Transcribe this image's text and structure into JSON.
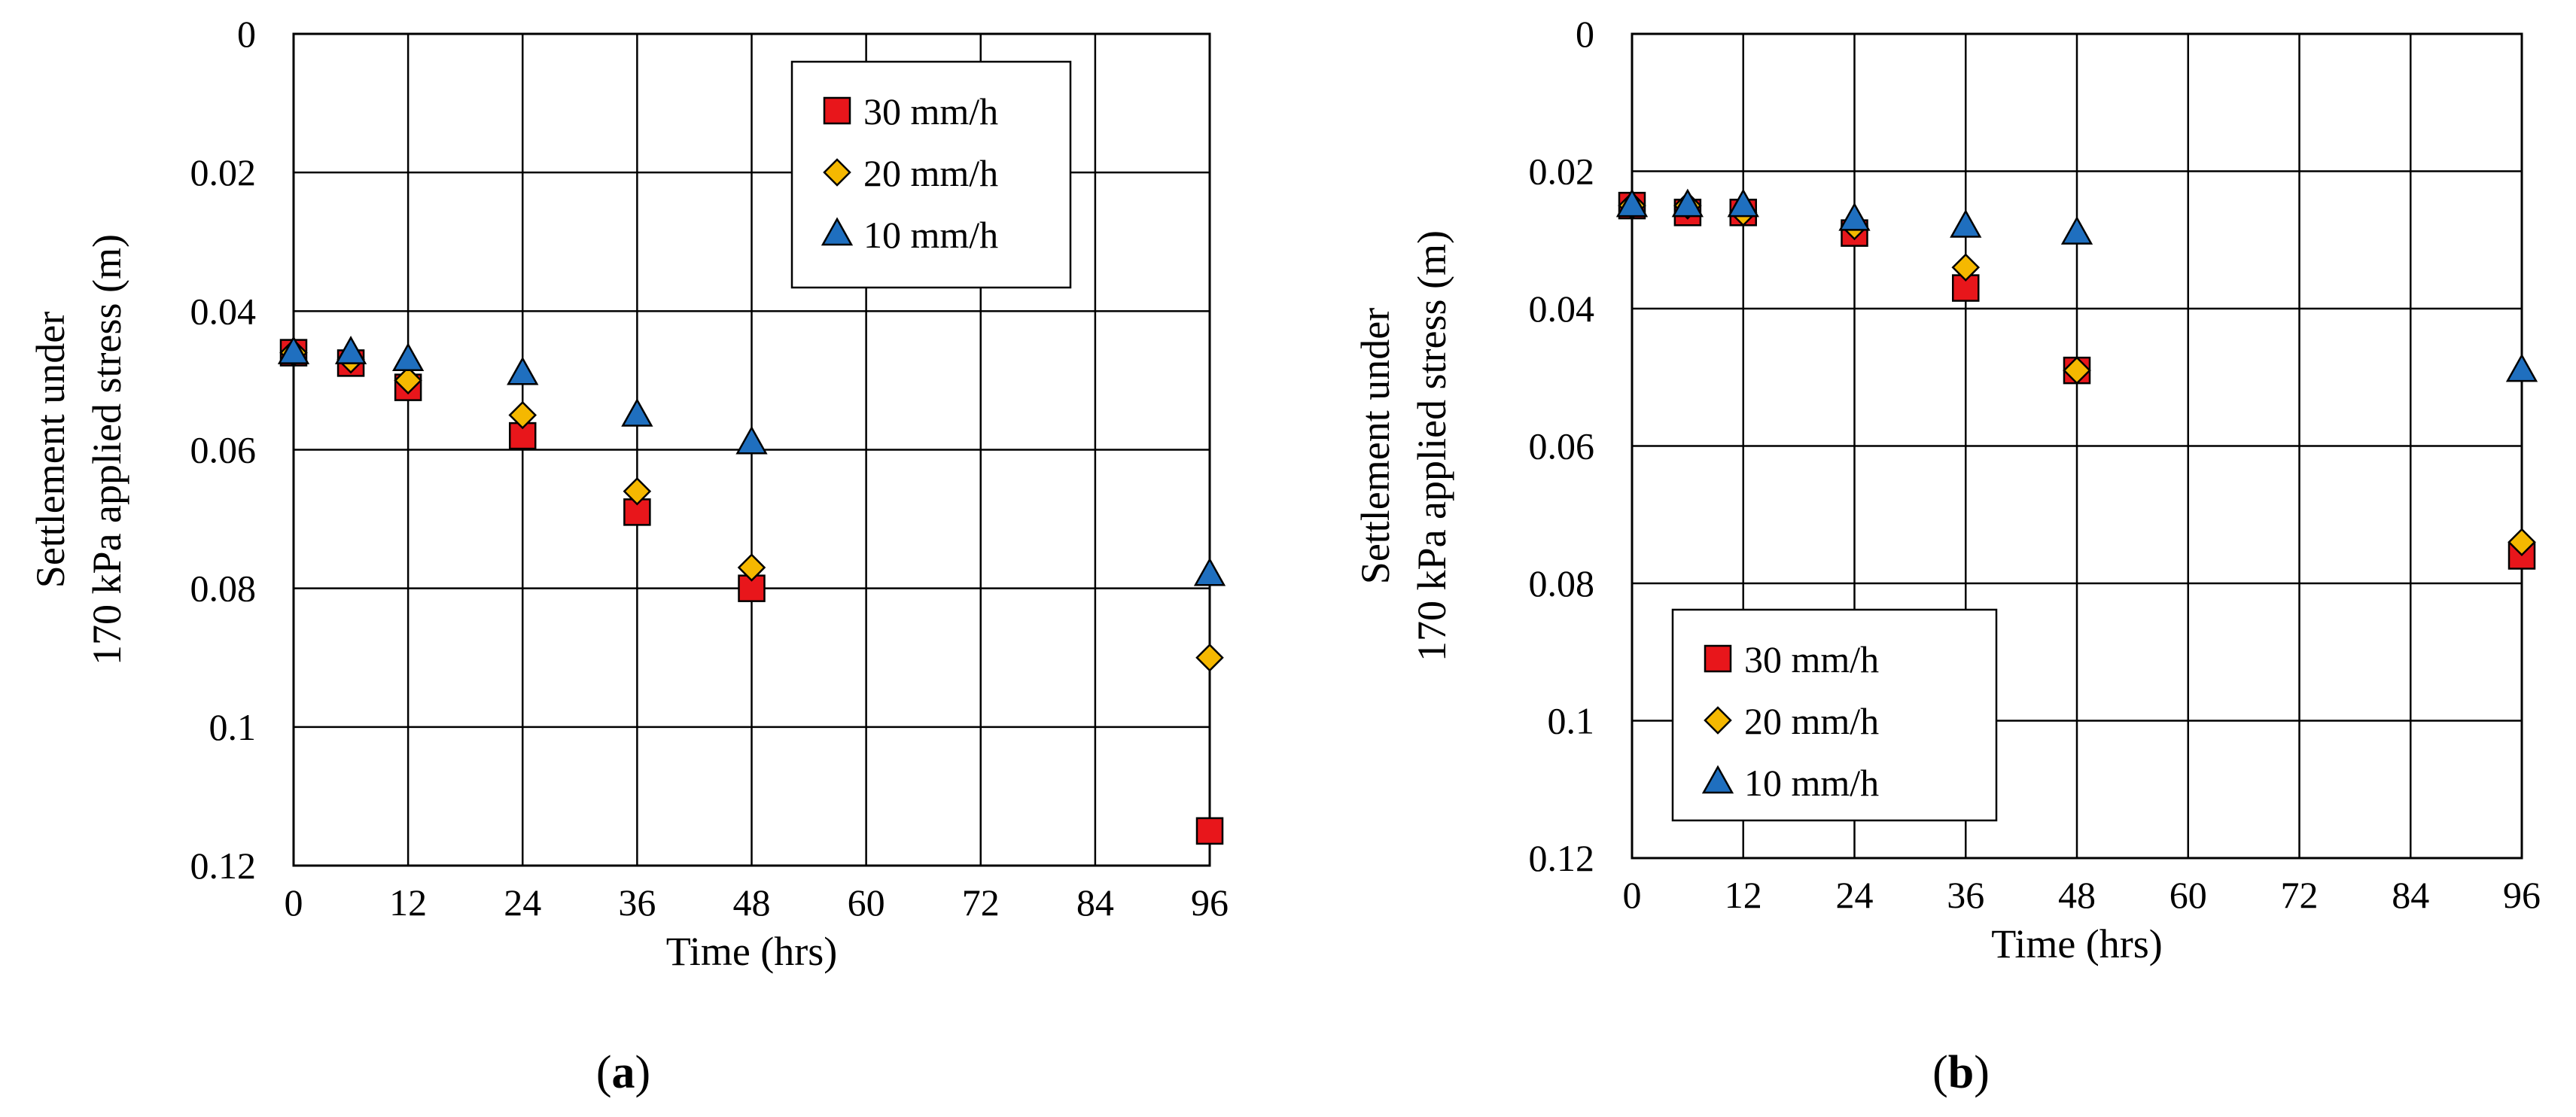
{
  "chart_data": [
    {
      "type": "scatter",
      "panel_label": {
        "open": "(",
        "letter": "a",
        "close": ")"
      },
      "xlabel": "Time  (hrs)",
      "ylabel_line1": "Settlement  under",
      "ylabel_line2": "170 kPa applied stress (m)",
      "x_ticks": [
        0,
        12,
        24,
        36,
        48,
        60,
        72,
        84,
        96
      ],
      "x_tick_labels": [
        "0",
        "12",
        "24",
        "36",
        "48",
        "60",
        "72",
        "84",
        "96"
      ],
      "y_ticks": [
        0,
        0.02,
        0.04,
        0.06,
        0.08,
        0.1,
        0.12
      ],
      "y_tick_labels": [
        "0",
        "0.02",
        "0.04",
        "0.06",
        "0.08",
        "0.1",
        "0.12"
      ],
      "xlim": [
        0,
        96
      ],
      "ylim": [
        0,
        0.12
      ],
      "y_inverted": true,
      "grid": true,
      "legend_position": "top-right",
      "series": [
        {
          "name": "30 mm/h",
          "marker": "square",
          "color": "#e8161b",
          "x": [
            0,
            6,
            12,
            24,
            36,
            48,
            96
          ],
          "y": [
            0.046,
            0.0475,
            0.051,
            0.058,
            0.069,
            0.08,
            0.115
          ]
        },
        {
          "name": "20 mm/h",
          "marker": "diamond",
          "color": "#f5b800",
          "x": [
            0,
            6,
            12,
            24,
            36,
            48,
            96
          ],
          "y": [
            0.046,
            0.047,
            0.05,
            0.055,
            0.066,
            0.077,
            0.09
          ]
        },
        {
          "name": "10 mm/h",
          "marker": "triangle",
          "color": "#1f6fbf",
          "x": [
            0,
            6,
            12,
            24,
            36,
            48,
            96
          ],
          "y": [
            0.046,
            0.046,
            0.047,
            0.049,
            0.055,
            0.059,
            0.078
          ]
        }
      ]
    },
    {
      "type": "scatter",
      "panel_label": {
        "open": "(",
        "letter": "b",
        "close": ")"
      },
      "xlabel": "Time  (hrs)",
      "ylabel_line1": "Settlement  under",
      "ylabel_line2": "170 kPa applied stress (m)",
      "x_ticks": [
        0,
        12,
        24,
        36,
        48,
        60,
        72,
        84,
        96
      ],
      "x_tick_labels": [
        "0",
        "12",
        "24",
        "36",
        "48",
        "60",
        "72",
        "84",
        "96"
      ],
      "y_ticks": [
        0,
        0.02,
        0.04,
        0.06,
        0.08,
        0.1,
        0.12
      ],
      "y_tick_labels": [
        "0",
        "0.02",
        "0.04",
        "0.06",
        "0.08",
        "0.1",
        "0.12"
      ],
      "xlim": [
        0,
        96
      ],
      "ylim": [
        0,
        0.12
      ],
      "y_inverted": true,
      "grid": true,
      "legend_position": "bottom-left",
      "series": [
        {
          "name": "30 mm/h",
          "marker": "square",
          "color": "#e8161b",
          "x": [
            0,
            6,
            12,
            24,
            36,
            48,
            96
          ],
          "y": [
            0.025,
            0.026,
            0.026,
            0.029,
            0.037,
            0.049,
            0.076
          ]
        },
        {
          "name": "20 mm/h",
          "marker": "diamond",
          "color": "#f5b800",
          "x": [
            0,
            6,
            12,
            24,
            36,
            48,
            96
          ],
          "y": [
            0.025,
            0.025,
            0.026,
            0.028,
            0.034,
            0.049,
            0.074
          ]
        },
        {
          "name": "10 mm/h",
          "marker": "triangle",
          "color": "#1f6fbf",
          "x": [
            0,
            6,
            12,
            24,
            36,
            48,
            96
          ],
          "y": [
            0.025,
            0.025,
            0.025,
            0.027,
            0.028,
            0.029,
            0.049
          ]
        }
      ]
    }
  ]
}
